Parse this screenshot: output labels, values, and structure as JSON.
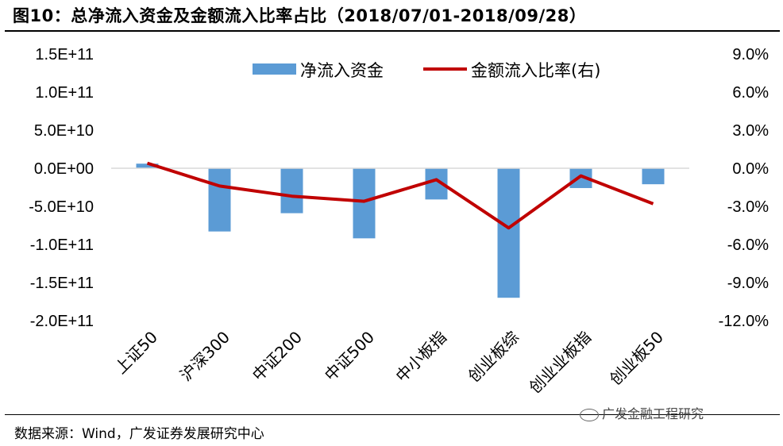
{
  "title": "图10：总净流入资金及金额流入比率占比（2018/07/01-2018/09/28）",
  "source": "数据来源：Wind，广发证券发展研究中心",
  "watermark": "广发金融工程研究",
  "colors": {
    "bar": "#5B9BD5",
    "line": "#C00000",
    "axis": "#000000"
  },
  "chart_data": {
    "type": "bar+line",
    "categories": [
      "上证50",
      "沪深300",
      "中证200",
      "中证500",
      "中小板指",
      "创业板综",
      "创业业板指",
      "创业板50"
    ],
    "left_axis": {
      "ylim": [
        -200000000000,
        150000000000
      ],
      "tick_values": [
        150000000000,
        100000000000,
        50000000000,
        0,
        -50000000000,
        -100000000000,
        -150000000000,
        -200000000000
      ],
      "tick_labels": [
        "1.5E+11",
        "1.0E+11",
        "5.0E+10",
        "0.0E+00",
        "-5.0E+10",
        "-1.0E+11",
        "-1.5E+11",
        "-2.0E+11"
      ]
    },
    "right_axis": {
      "ylim": [
        -12,
        9
      ],
      "tick_values": [
        9,
        6,
        3,
        0,
        -3,
        -6,
        -9,
        -12
      ],
      "tick_labels": [
        "9.0%",
        "6.0%",
        "3.0%",
        "0.0%",
        "-3.0%",
        "-6.0%",
        "-9.0%",
        "-12.0%"
      ]
    },
    "series": [
      {
        "name": "净流入资金",
        "type": "bar",
        "axis": "left",
        "values": [
          6000000000,
          -83000000000,
          -59000000000,
          -92000000000,
          -41000000000,
          -170000000000,
          -26000000000,
          -21000000000
        ]
      },
      {
        "name": "金额流入比率(右)",
        "type": "line",
        "axis": "right",
        "values": [
          0.4,
          -1.4,
          -2.2,
          -2.6,
          -0.9,
          -4.7,
          -0.6,
          -2.8
        ]
      }
    ],
    "legend_position": "top"
  }
}
